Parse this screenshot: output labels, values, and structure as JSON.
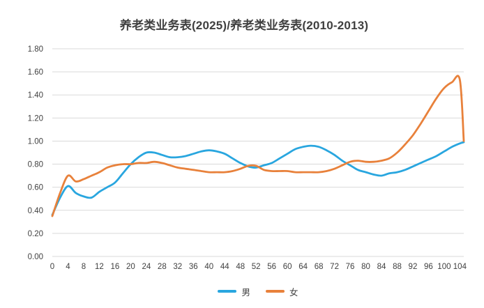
{
  "chart_data": {
    "type": "line",
    "title": "养老类业务表(2025)/养老类业务表(2010-2013)",
    "xlabel": "",
    "ylabel": "",
    "xlim": [
      0,
      105
    ],
    "ylim": [
      0,
      1.8
    ],
    "grid": "horizontal-only",
    "legend_position": "bottom-center",
    "colors": {
      "gridline": "#d9d9d9",
      "tick_text": "#404040",
      "title_text": "#3f3f3f",
      "background": "#ffffff"
    },
    "yticks": [
      "0.00",
      "0.20",
      "0.40",
      "0.60",
      "0.80",
      "1.00",
      "1.20",
      "1.40",
      "1.60",
      "1.80"
    ],
    "xticks": [
      0,
      4,
      8,
      12,
      16,
      20,
      24,
      28,
      32,
      36,
      40,
      44,
      48,
      52,
      56,
      60,
      64,
      68,
      72,
      76,
      80,
      84,
      88,
      92,
      96,
      100,
      104
    ],
    "x": [
      0,
      2,
      4,
      6,
      8,
      10,
      12,
      14,
      16,
      18,
      20,
      22,
      24,
      26,
      28,
      30,
      32,
      34,
      36,
      38,
      40,
      42,
      44,
      46,
      48,
      50,
      52,
      54,
      56,
      58,
      60,
      62,
      64,
      66,
      68,
      70,
      72,
      74,
      76,
      78,
      80,
      82,
      84,
      86,
      88,
      90,
      92,
      94,
      96,
      98,
      100,
      102,
      104,
      105
    ],
    "series": [
      {
        "name": "男",
        "color": "#29a6df",
        "values": [
          0.36,
          0.51,
          0.61,
          0.55,
          0.52,
          0.51,
          0.56,
          0.6,
          0.64,
          0.72,
          0.8,
          0.86,
          0.9,
          0.9,
          0.88,
          0.86,
          0.86,
          0.87,
          0.89,
          0.91,
          0.92,
          0.91,
          0.89,
          0.85,
          0.81,
          0.78,
          0.77,
          0.79,
          0.81,
          0.85,
          0.89,
          0.93,
          0.95,
          0.96,
          0.95,
          0.92,
          0.88,
          0.83,
          0.79,
          0.75,
          0.73,
          0.71,
          0.7,
          0.72,
          0.73,
          0.75,
          0.78,
          0.81,
          0.84,
          0.87,
          0.91,
          0.95,
          0.98,
          0.99
        ]
      },
      {
        "name": "女",
        "color": "#e8813b",
        "values": [
          0.35,
          0.55,
          0.7,
          0.65,
          0.67,
          0.7,
          0.73,
          0.77,
          0.79,
          0.8,
          0.8,
          0.81,
          0.81,
          0.82,
          0.81,
          0.79,
          0.77,
          0.76,
          0.75,
          0.74,
          0.73,
          0.73,
          0.73,
          0.74,
          0.76,
          0.785,
          0.785,
          0.75,
          0.74,
          0.74,
          0.74,
          0.73,
          0.73,
          0.73,
          0.73,
          0.74,
          0.76,
          0.79,
          0.82,
          0.83,
          0.82,
          0.82,
          0.83,
          0.85,
          0.9,
          0.97,
          1.05,
          1.15,
          1.26,
          1.37,
          1.46,
          1.51,
          1.53,
          1.0
        ]
      }
    ]
  }
}
